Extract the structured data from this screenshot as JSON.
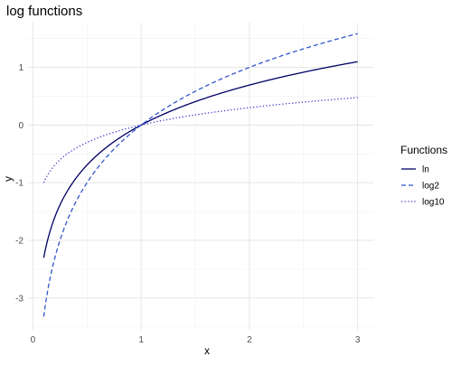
{
  "chart_data": {
    "type": "line",
    "title": "log functions",
    "xlabel": "x",
    "ylabel": "y",
    "xlim": [
      -0.045,
      3.145
    ],
    "ylim": [
      -3.552,
      1.7767
    ],
    "x_ticks": [
      0,
      1,
      2,
      3
    ],
    "x_tick_labels": [
      "0",
      "1",
      "2",
      "3"
    ],
    "y_ticks": [
      -3,
      -2,
      -1,
      0,
      1
    ],
    "y_tick_labels": [
      "-3",
      "-2",
      "-1",
      "0",
      "1"
    ],
    "grid": true,
    "legend": {
      "title": "Functions",
      "position": "right"
    },
    "series": [
      {
        "name": "ln",
        "color": "#000066",
        "dash": "solid",
        "fn": "ln"
      },
      {
        "name": "log2",
        "color": "#3355cc",
        "dash": "dashed",
        "fn": "log2"
      },
      {
        "name": "log10",
        "color": "#3333cc",
        "dash": "dotted",
        "fn": "log10"
      }
    ],
    "x_start": 0.1,
    "x_end": 3.0
  }
}
